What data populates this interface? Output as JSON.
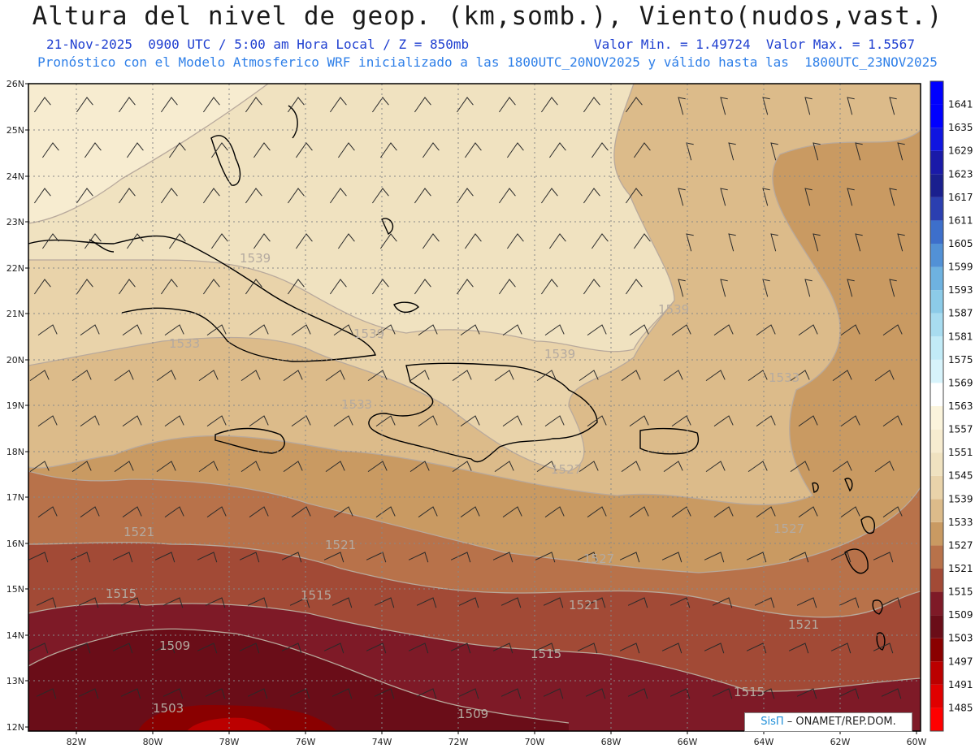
{
  "title": "Altura del nivel de geop. (km,somb.), Viento(nudos,vast.)",
  "subtitle": {
    "datetime": "21-Nov-2025  0900 UTC / 5:00 am Hora Local / Z = 850mb",
    "min_value": "Valor Min. = 1.49724",
    "max_value": "Valor Max. = 1.5567"
  },
  "model_line": "Pronóstico con el Modelo Atmosferico WRF inicializado a las 1800UTC_20NOV2025 y válido hasta las  1800UTC_23NOV2025",
  "lat_labels": [
    "26N",
    "25N",
    "24N",
    "23N",
    "22N",
    "21N",
    "20N",
    "19N",
    "18N",
    "17N",
    "16N",
    "15N",
    "14N",
    "13N",
    "12N"
  ],
  "lon_labels": [
    "82W",
    "80W",
    "78W",
    "76W",
    "74W",
    "72W",
    "70W",
    "68W",
    "66W",
    "64W",
    "62W",
    "60W"
  ],
  "contour_labels": [
    "1539",
    "1539",
    "1539",
    "1539",
    "1533",
    "1533",
    "1533",
    "1527",
    "1527",
    "1527",
    "1521",
    "1521",
    "1521",
    "1521",
    "1515",
    "1515",
    "1515",
    "1515",
    "1509",
    "1509",
    "1503"
  ],
  "colorbar": {
    "levels": [
      "1485",
      "1491",
      "1497",
      "1503",
      "1509",
      "1515",
      "1521",
      "1527",
      "1533",
      "1539",
      "1545",
      "1551",
      "1557",
      "1563",
      "1569",
      "1575",
      "1581",
      "1587",
      "1593",
      "1599",
      "1605",
      "1611",
      "1617",
      "1623",
      "1629",
      "1635",
      "1641"
    ],
    "colors": [
      "#ff0000",
      "#e00000",
      "#bb0000",
      "#8a0000",
      "#6a0d18",
      "#7e1a27",
      "#a24a36",
      "#b8724a",
      "#c99a62",
      "#dcbb8a",
      "#e9d3aa",
      "#f0e2c0",
      "#f7ecd0",
      "#fbf4dc",
      "#ffffff",
      "#d7f3fb",
      "#c2ebf7",
      "#a8dcf0",
      "#8ccbe8",
      "#6eb2e0",
      "#5291d6",
      "#3d6fcb",
      "#2b3fb0",
      "#1a1f8e",
      "#1a1aa8",
      "#1015e0",
      "#0000ff"
    ]
  },
  "credit": {
    "brand": "SisΠ",
    "text": "– ONAMET/REP.DOM."
  }
}
